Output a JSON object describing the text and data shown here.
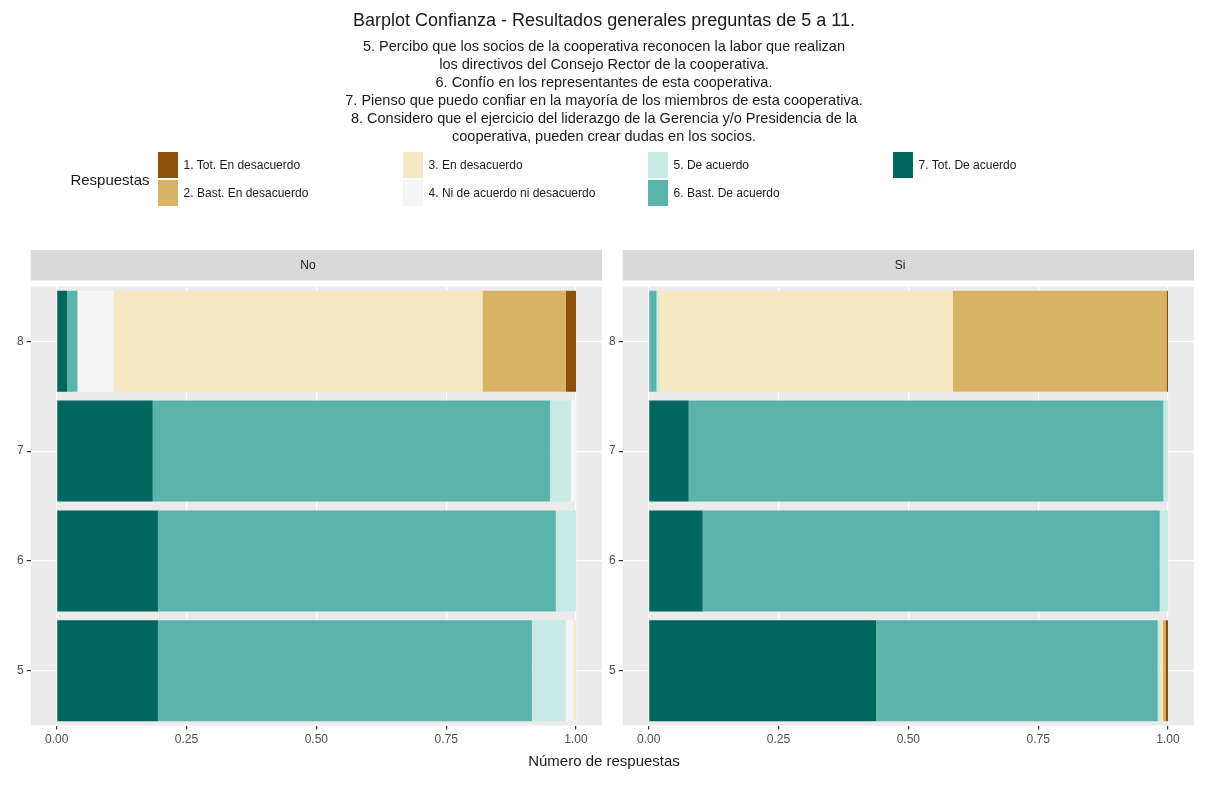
{
  "chart_data": [
    {
      "type": "other",
      "title": "Barplot Confianza - Resultados generales preguntas de 5 a 11.",
      "subtitle": "5. Percibo que los socios de la cooperativa reconocen la labor que realizan\nlos directivos del Consejo Rector de la cooperativa.\n6. Confío en los representantes de esta cooperativa.\n7. Pienso que puedo confiar en la mayoría de los miembros de esta cooperativa.\n8. Considero que el ejercicio del liderazgo de la Gerencia y/o Presidencia de la\ncooperativa, pueden crear dudas en los socios."
    },
    {
      "type": "bar",
      "title": "No",
      "orientation": "horizontal",
      "stacked": true,
      "grid": true,
      "legend": "top",
      "legend_title": "Respuestas",
      "xlabel": "Número de respuestas",
      "categories": [
        "8",
        "7",
        "6",
        "5"
      ],
      "xlim": [
        -0.05,
        1.05
      ],
      "xticks": [
        {
          "value": 0,
          "label": "0.00"
        },
        {
          "value": 0.25,
          "label": "0.25"
        },
        {
          "value": 0.5,
          "label": "0.50"
        },
        {
          "value": 0.75,
          "label": "0.75"
        },
        {
          "value": 1,
          "label": "1.00"
        }
      ],
      "series": [
        {
          "name": "7. Tot. De acuerdo",
          "color": "#01665e",
          "values": [
            0.02,
            0.185,
            0.195,
            0.195
          ]
        },
        {
          "name": "6. Bast. De acuerdo",
          "color": "#5ab4ac",
          "values": [
            0.02,
            0.765,
            0.766,
            0.72
          ]
        },
        {
          "name": "5. De acuerdo",
          "color": "#c7eae5",
          "values": [
            0,
            0.04,
            0.039,
            0.065
          ]
        },
        {
          "name": "4. Ni de acuerdo ni desacuerdo",
          "color": "#f5f5f5",
          "values": [
            0.07,
            0.01,
            0,
            0.015
          ]
        },
        {
          "name": "3. En desacuerdo",
          "color": "#f6e8c3",
          "values": [
            0.71,
            0,
            0,
            0.005
          ]
        },
        {
          "name": "2. Bast. En desacuerdo",
          "color": "#d8b365",
          "values": [
            0.16,
            0,
            0,
            0
          ]
        },
        {
          "name": "1. Tot. En desacuerdo",
          "color": "#8c510a",
          "values": [
            0.02,
            0,
            0,
            0
          ]
        }
      ]
    },
    {
      "type": "bar",
      "title": "Si",
      "orientation": "horizontal",
      "stacked": true,
      "grid": true,
      "categories": [
        "8",
        "7",
        "6",
        "5"
      ],
      "xlim": [
        -0.05,
        1.05
      ],
      "xticks": [
        {
          "value": 0,
          "label": "0.00"
        },
        {
          "value": 0.25,
          "label": "0.25"
        },
        {
          "value": 0.5,
          "label": "0.50"
        },
        {
          "value": 0.75,
          "label": "0.75"
        },
        {
          "value": 1,
          "label": "1.00"
        }
      ],
      "series": [
        {
          "color": "#01665e",
          "values": [
            0,
            0.077,
            0.104,
            0.438
          ]
        },
        {
          "color": "#5ab4ac",
          "values": [
            0.015,
            0.914,
            0.88,
            0.542
          ]
        },
        {
          "color": "#c7eae5",
          "values": [
            0.005,
            0.009,
            0.016,
            0.005
          ]
        },
        {
          "color": "#f5f5f5",
          "values": [
            0,
            0,
            0,
            0
          ]
        },
        {
          "color": "#f6e8c3",
          "values": [
            0.566,
            0,
            0,
            0.005
          ]
        },
        {
          "color": "#d8b365",
          "values": [
            0.411,
            0,
            0,
            0.005
          ]
        },
        {
          "color": "#8c510a",
          "values": [
            0.003,
            0,
            0,
            0.005
          ]
        }
      ]
    }
  ]
}
